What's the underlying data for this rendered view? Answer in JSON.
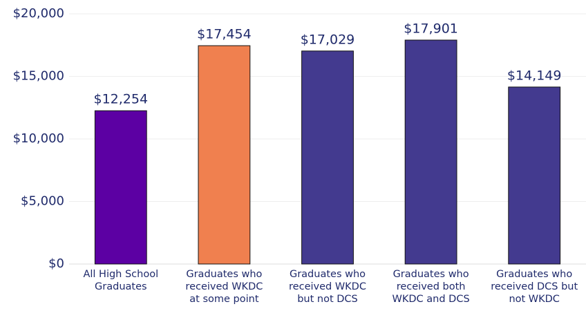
{
  "chart_data": {
    "type": "bar",
    "categories": [
      [
        "All High School",
        "Graduates"
      ],
      [
        "Graduates who",
        "received WKDC",
        "at some point"
      ],
      [
        "Graduates who",
        "received WKDC",
        "but not DCS"
      ],
      [
        "Graduates who",
        "received both",
        "WKDC and DCS"
      ],
      [
        "Graduates who",
        "received DCS but",
        "not WKDC"
      ]
    ],
    "values": [
      12254,
      17454,
      17029,
      17901,
      14149
    ],
    "value_labels": [
      "$12,254",
      "$17,454",
      "$17,029",
      "$17,901",
      "$14,149"
    ],
    "colors": [
      "#5c00a3",
      "#f0804f",
      "#433a8f",
      "#433a8f",
      "#433a8f"
    ],
    "ylim": [
      0,
      20000
    ],
    "yticks": [
      {
        "value": 0,
        "label": "$0"
      },
      {
        "value": 5000,
        "label": "$5,000"
      },
      {
        "value": 10000,
        "label": "$10,000"
      },
      {
        "value": 15000,
        "label": "$15,000"
      },
      {
        "value": 20000,
        "label": "$20,000"
      }
    ],
    "grid": true
  }
}
